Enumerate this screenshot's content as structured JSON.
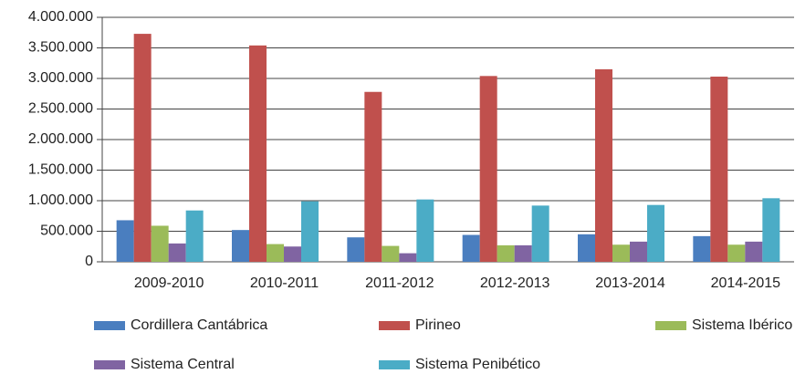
{
  "chart_data": {
    "type": "bar",
    "categories": [
      "2009-2010",
      "2010-2011",
      "2011-2012",
      "2012-2013",
      "2013-2014",
      "2014-2015"
    ],
    "series": [
      {
        "name": "Cordillera Cantábrica",
        "color": "#4a7ebf",
        "values": [
          680000,
          520000,
          400000,
          440000,
          450000,
          420000
        ]
      },
      {
        "name": "Pirineo",
        "color": "#c0504d",
        "values": [
          3730000,
          3540000,
          2780000,
          3040000,
          3150000,
          3030000
        ]
      },
      {
        "name": "Sistema Ibérico",
        "color": "#9bbb59",
        "values": [
          590000,
          290000,
          260000,
          270000,
          280000,
          280000
        ]
      },
      {
        "name": "Sistema Central",
        "color": "#8064a2",
        "values": [
          300000,
          250000,
          140000,
          270000,
          330000,
          330000
        ]
      },
      {
        "name": "Sistema Penibético",
        "color": "#4bacc6",
        "values": [
          840000,
          990000,
          1020000,
          920000,
          930000,
          1040000
        ]
      }
    ],
    "ylim": [
      0,
      4000000
    ],
    "yticks": [
      0,
      {
        "value": 500000,
        "label": "500.000"
      },
      {
        "value": 1000000,
        "label": "1.000.000"
      },
      {
        "value": 1500000,
        "label": "1.500.000"
      },
      {
        "value": 2000000,
        "label": "2.000.000"
      },
      {
        "value": 2500000,
        "label": "2.500.000"
      },
      {
        "value": 3000000,
        "label": "3.000.000"
      },
      {
        "value": 3500000,
        "label": "3.500.000"
      },
      {
        "value": 4000000,
        "label": "4.000.000"
      }
    ],
    "grid": true
  }
}
